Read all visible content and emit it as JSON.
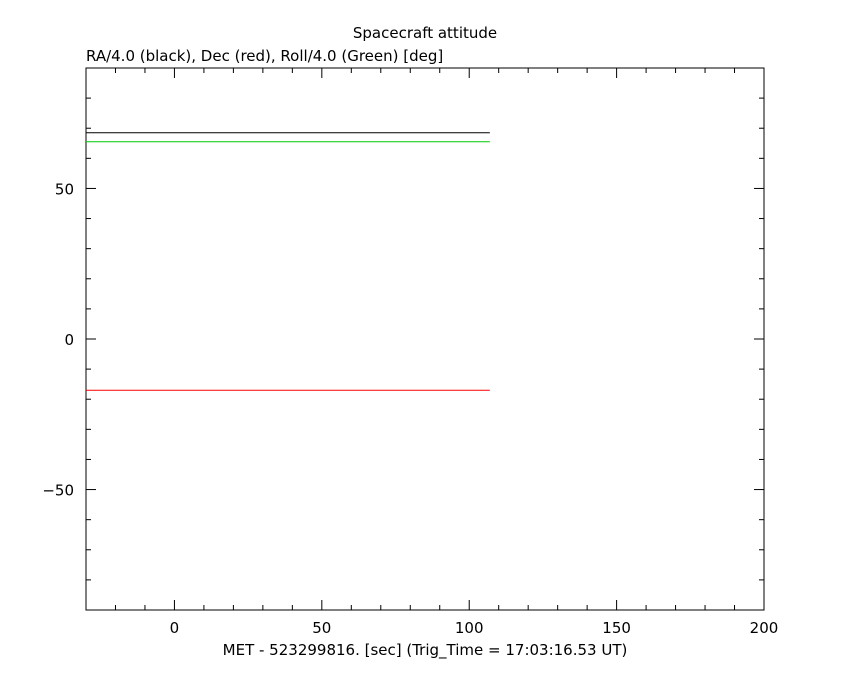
{
  "chart_data": {
    "type": "line",
    "title": "Spacecraft attitude",
    "subtitle": "RA/4.0 (black), Dec (red), Roll/4.0 (Green) [deg]",
    "xlabel": "MET - 523299816. [sec] (Trig_Time = 17:03:16.53 UT)",
    "ylabel": "",
    "xlim": [
      -30,
      200
    ],
    "ylim": [
      -90,
      90
    ],
    "xticks": [
      0,
      50,
      100,
      150,
      200
    ],
    "yticks": [
      -50,
      0,
      50
    ],
    "xtick_labels": [
      "0",
      "50",
      "100",
      "150",
      "200"
    ],
    "ytick_labels": [
      "−50",
      "0",
      "50"
    ],
    "grid": false,
    "series": [
      {
        "color": "#000000",
        "x": [
          -30,
          107
        ],
        "y": [
          68.5,
          68.5
        ]
      },
      {
        "color": "#ff0000",
        "x": [
          -30,
          107
        ],
        "y": [
          -17,
          -17
        ]
      },
      {
        "color": "#00cc00",
        "x": [
          -30,
          107
        ],
        "y": [
          65.5,
          65.5
        ]
      }
    ]
  }
}
